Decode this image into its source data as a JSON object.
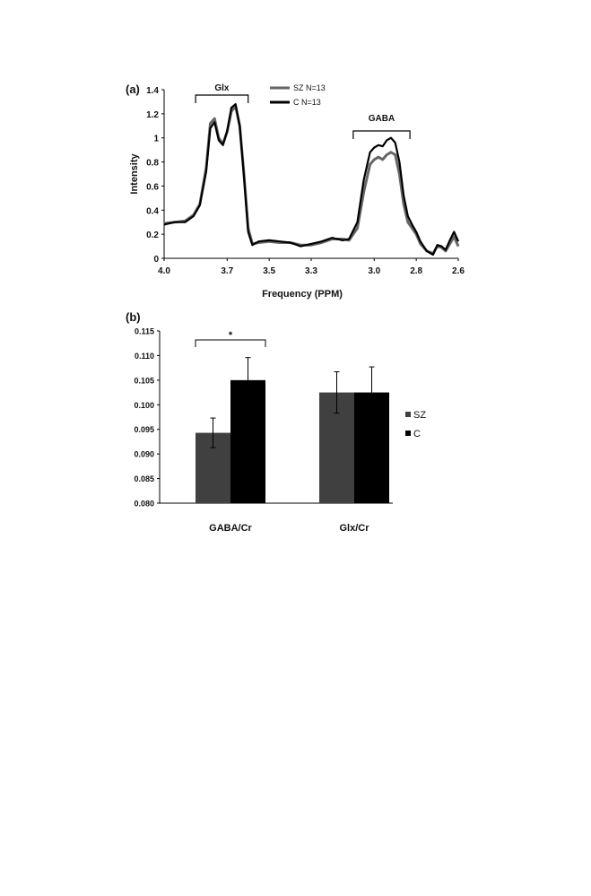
{
  "panels": {
    "a_label": "(a)",
    "b_label": "(b)"
  },
  "chart_data": [
    {
      "type": "line",
      "xlabel": "Frequency (PPM)",
      "ylabel": "Intensity",
      "x_reversed": true,
      "xlim": [
        4.0,
        2.6
      ],
      "ylim": [
        0,
        1.4
      ],
      "x_ticks": [
        "4.0",
        "3.7",
        "3.5",
        "3.3",
        "3.0",
        "2.8",
        "2.6"
      ],
      "y_ticks": [
        "0",
        "0.2",
        "0.4",
        "0.6",
        "0.8",
        "1",
        "1.2",
        "1.4"
      ],
      "annotations": [
        {
          "label": "Glx",
          "x_range": [
            3.85,
            3.6
          ]
        },
        {
          "label": "GABA",
          "x_range": [
            3.1,
            2.83
          ]
        }
      ],
      "legend": {
        "placement": "top-center"
      },
      "series": [
        {
          "name": "SZ N=13",
          "color": "#666666",
          "points": [
            [
              4.0,
              0.29
            ],
            [
              3.95,
              0.3
            ],
            [
              3.9,
              0.31
            ],
            [
              3.86,
              0.36
            ],
            [
              3.83,
              0.45
            ],
            [
              3.8,
              0.75
            ],
            [
              3.78,
              1.12
            ],
            [
              3.76,
              1.16
            ],
            [
              3.74,
              1.0
            ],
            [
              3.72,
              0.95
            ],
            [
              3.7,
              1.05
            ],
            [
              3.68,
              1.22
            ],
            [
              3.66,
              1.26
            ],
            [
              3.64,
              1.1
            ],
            [
              3.62,
              0.7
            ],
            [
              3.6,
              0.25
            ],
            [
              3.58,
              0.12
            ],
            [
              3.55,
              0.13
            ],
            [
              3.5,
              0.14
            ],
            [
              3.45,
              0.13
            ],
            [
              3.4,
              0.13
            ],
            [
              3.35,
              0.11
            ],
            [
              3.3,
              0.11
            ],
            [
              3.25,
              0.13
            ],
            [
              3.2,
              0.16
            ],
            [
              3.15,
              0.16
            ],
            [
              3.12,
              0.15
            ],
            [
              3.08,
              0.25
            ],
            [
              3.05,
              0.55
            ],
            [
              3.02,
              0.78
            ],
            [
              3.0,
              0.82
            ],
            [
              2.98,
              0.84
            ],
            [
              2.96,
              0.82
            ],
            [
              2.94,
              0.86
            ],
            [
              2.92,
              0.88
            ],
            [
              2.9,
              0.86
            ],
            [
              2.88,
              0.7
            ],
            [
              2.86,
              0.45
            ],
            [
              2.84,
              0.3
            ],
            [
              2.82,
              0.25
            ],
            [
              2.8,
              0.2
            ],
            [
              2.78,
              0.12
            ],
            [
              2.75,
              0.06
            ],
            [
              2.72,
              0.04
            ],
            [
              2.7,
              0.1
            ],
            [
              2.68,
              0.09
            ],
            [
              2.66,
              0.06
            ],
            [
              2.64,
              0.12
            ],
            [
              2.62,
              0.18
            ],
            [
              2.6,
              0.1
            ]
          ]
        },
        {
          "name": "C N=13",
          "color": "#000000",
          "points": [
            [
              4.0,
              0.28
            ],
            [
              3.95,
              0.3
            ],
            [
              3.9,
              0.3
            ],
            [
              3.86,
              0.35
            ],
            [
              3.83,
              0.44
            ],
            [
              3.8,
              0.72
            ],
            [
              3.78,
              1.08
            ],
            [
              3.76,
              1.13
            ],
            [
              3.74,
              0.98
            ],
            [
              3.72,
              0.94
            ],
            [
              3.7,
              1.06
            ],
            [
              3.68,
              1.25
            ],
            [
              3.66,
              1.28
            ],
            [
              3.64,
              1.1
            ],
            [
              3.62,
              0.68
            ],
            [
              3.6,
              0.22
            ],
            [
              3.58,
              0.11
            ],
            [
              3.55,
              0.14
            ],
            [
              3.5,
              0.15
            ],
            [
              3.45,
              0.14
            ],
            [
              3.4,
              0.13
            ],
            [
              3.35,
              0.1
            ],
            [
              3.3,
              0.12
            ],
            [
              3.25,
              0.14
            ],
            [
              3.2,
              0.17
            ],
            [
              3.15,
              0.15
            ],
            [
              3.12,
              0.16
            ],
            [
              3.08,
              0.3
            ],
            [
              3.05,
              0.65
            ],
            [
              3.02,
              0.88
            ],
            [
              3.0,
              0.92
            ],
            [
              2.98,
              0.94
            ],
            [
              2.96,
              0.93
            ],
            [
              2.94,
              0.98
            ],
            [
              2.92,
              1.0
            ],
            [
              2.9,
              0.96
            ],
            [
              2.88,
              0.8
            ],
            [
              2.86,
              0.52
            ],
            [
              2.84,
              0.35
            ],
            [
              2.82,
              0.28
            ],
            [
              2.8,
              0.22
            ],
            [
              2.78,
              0.14
            ],
            [
              2.75,
              0.06
            ],
            [
              2.72,
              0.03
            ],
            [
              2.7,
              0.11
            ],
            [
              2.68,
              0.1
            ],
            [
              2.66,
              0.07
            ],
            [
              2.64,
              0.15
            ],
            [
              2.62,
              0.22
            ],
            [
              2.6,
              0.14
            ]
          ]
        }
      ]
    },
    {
      "type": "bar",
      "categories": [
        "GABA/Cr",
        "Glx/Cr"
      ],
      "ylim": [
        0.08,
        0.115
      ],
      "y_ticks": [
        "0.080",
        "0.085",
        "0.090",
        "0.095",
        "0.100",
        "0.105",
        "0.110",
        "0.115"
      ],
      "legend": {
        "placement": "right"
      },
      "significance": {
        "label": "*",
        "category": "GABA/Cr"
      },
      "series": [
        {
          "name": "SZ",
          "color": "#404040",
          "values": [
            0.0943,
            0.1025
          ],
          "errors": [
            0.003,
            0.0042
          ]
        },
        {
          "name": "C",
          "color": "#000000",
          "values": [
            0.105,
            0.1025
          ],
          "errors": [
            0.0046,
            0.0052
          ]
        }
      ]
    }
  ]
}
